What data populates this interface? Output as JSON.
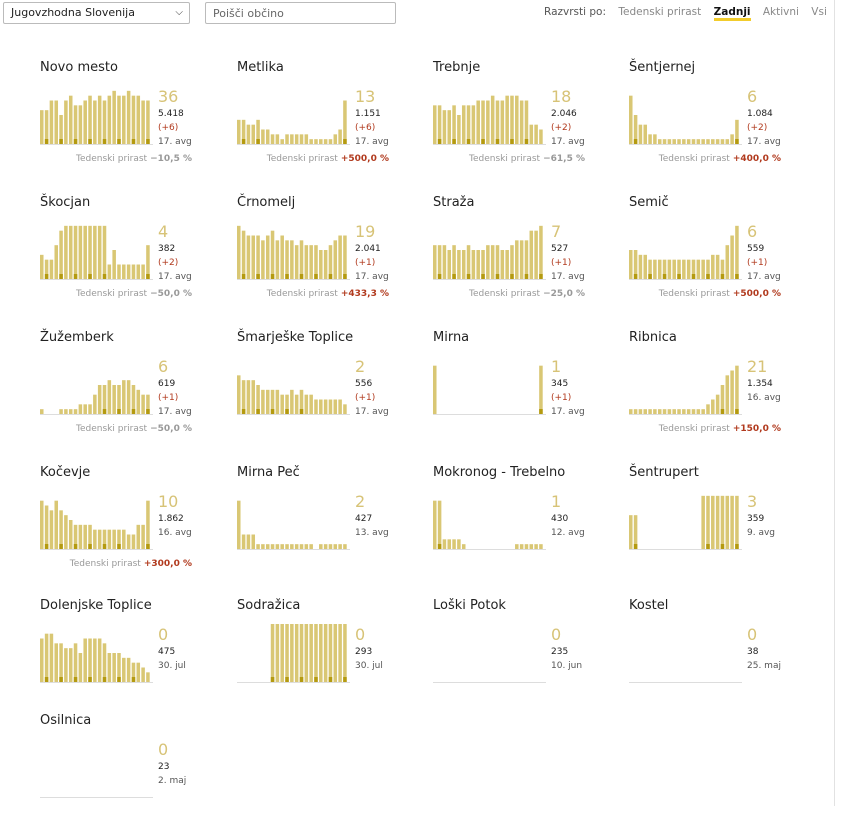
{
  "filters": {
    "region_value": "Jugovzhodna Slovenija",
    "search_placeholder": "Poišči občino"
  },
  "sort": {
    "label": "Razvrsti po:",
    "options": [
      "Tedenski prirast",
      "Zadnji",
      "Aktivni",
      "Vsi"
    ],
    "active": "Zadnji"
  },
  "colors": {
    "bar_light": "#d9c774",
    "bar_dark": "#b49a10",
    "growth_up": "#b13a1e",
    "growth_down": "#1e9a53"
  },
  "growth_label": "Tedenski prirast",
  "cards": [
    {
      "name": "Novo mesto",
      "big": "36",
      "total": "5.418",
      "change": "(+6)",
      "avg": "17. avg",
      "growth": "−10,5 %",
      "dir": "down",
      "bars": [
        7,
        7,
        9,
        9,
        6,
        9,
        10,
        8,
        8,
        9,
        10,
        9,
        10,
        9,
        10,
        11,
        10,
        10,
        11,
        10,
        10,
        9,
        9
      ]
    },
    {
      "name": "Metlika",
      "big": "13",
      "total": "1.151",
      "change": "(+6)",
      "avg": "17. avg",
      "growth": "+500,0 %",
      "dir": "up",
      "bars": [
        5,
        5,
        4,
        4,
        5,
        3,
        3,
        2,
        2,
        1,
        2,
        2,
        2,
        2,
        2,
        1,
        1,
        1,
        1,
        1,
        2,
        3,
        9
      ]
    },
    {
      "name": "Trebnje",
      "big": "18",
      "total": "2.046",
      "change": "(+2)",
      "avg": "17. avg",
      "growth": "−61,5 %",
      "dir": "down",
      "bars": [
        8,
        8,
        7,
        7,
        8,
        6,
        8,
        8,
        8,
        9,
        9,
        9,
        10,
        9,
        9,
        10,
        10,
        10,
        9,
        9,
        4,
        4,
        3
      ]
    },
    {
      "name": "Šentjernej",
      "big": "6",
      "total": "1.084",
      "change": "(+2)",
      "avg": "17. avg",
      "growth": "+400,0 %",
      "dir": "up",
      "bars": [
        10,
        6,
        4,
        4,
        2,
        2,
        1,
        1,
        1,
        1,
        1,
        1,
        1,
        1,
        1,
        1,
        1,
        1,
        1,
        1,
        1,
        2,
        5
      ]
    },
    {
      "name": "Škocjan",
      "big": "4",
      "total": "382",
      "change": "(+2)",
      "avg": "17. avg",
      "growth": "−50,0 %",
      "dir": "down",
      "bars": [
        5,
        4,
        4,
        7,
        10,
        11,
        11,
        11,
        11,
        11,
        11,
        11,
        11,
        11,
        3,
        6,
        3,
        3,
        3,
        3,
        3,
        3,
        7
      ]
    },
    {
      "name": "Črnomelj",
      "big": "19",
      "total": "2.041",
      "change": "(+1)",
      "avg": "17. avg",
      "growth": "+433,3 %",
      "dir": "up",
      "bars": [
        11,
        10,
        9,
        9,
        9,
        8,
        9,
        10,
        8,
        9,
        8,
        8,
        7,
        8,
        7,
        7,
        7,
        6,
        6,
        7,
        8,
        9,
        9
      ]
    },
    {
      "name": "Straža",
      "big": "7",
      "total": "527",
      "change": "(+1)",
      "avg": "17. avg",
      "growth": "−25,0 %",
      "dir": "down",
      "bars": [
        7,
        7,
        7,
        6,
        7,
        6,
        6,
        7,
        6,
        6,
        6,
        7,
        7,
        7,
        6,
        6,
        7,
        8,
        8,
        8,
        10,
        10,
        11
      ]
    },
    {
      "name": "Semič",
      "big": "6",
      "total": "559",
      "change": "(+1)",
      "avg": "17. avg",
      "growth": "+500,0 %",
      "dir": "up",
      "bars": [
        6,
        6,
        5,
        5,
        4,
        4,
        4,
        4,
        4,
        4,
        4,
        4,
        4,
        4,
        4,
        4,
        4,
        5,
        5,
        4,
        7,
        9,
        11
      ]
    },
    {
      "name": "Žužemberk",
      "big": "6",
      "total": "619",
      "change": "(+1)",
      "avg": "17. avg",
      "growth": "−50,0 %",
      "dir": "down",
      "bars": [
        1,
        0,
        0,
        0,
        1,
        1,
        1,
        1,
        2,
        2,
        2,
        4,
        6,
        6,
        7,
        6,
        6,
        7,
        7,
        6,
        5,
        4,
        4
      ]
    },
    {
      "name": "Šmarješke Toplice",
      "big": "2",
      "total": "556",
      "change": "(+1)",
      "avg": "17. avg",
      "growth": "",
      "dir": "",
      "bars": [
        8,
        7,
        7,
        7,
        6,
        5,
        5,
        5,
        5,
        4,
        4,
        5,
        4,
        5,
        4,
        4,
        3,
        3,
        3,
        3,
        3,
        3,
        2
      ]
    },
    {
      "name": "Mirna",
      "big": "1",
      "total": "345",
      "change": "(+1)",
      "avg": "17. avg",
      "growth": "",
      "dir": "",
      "bars": [
        10,
        0,
        0,
        0,
        0,
        0,
        0,
        0,
        0,
        0,
        0,
        0,
        0,
        0,
        0,
        0,
        0,
        0,
        0,
        0,
        0,
        0,
        10
      ]
    },
    {
      "name": "Ribnica",
      "big": "21",
      "total": "1.354",
      "change": "",
      "avg": "16. avg",
      "growth": "+150,0 %",
      "dir": "up",
      "bars": [
        1,
        1,
        1,
        1,
        1,
        1,
        1,
        1,
        1,
        1,
        1,
        1,
        1,
        1,
        1,
        1,
        2,
        3,
        4,
        6,
        8,
        9,
        10
      ]
    },
    {
      "name": "Kočevje",
      "big": "10",
      "total": "1.862",
      "change": "",
      "avg": "16. avg",
      "growth": "+300,0 %",
      "dir": "up",
      "bars": [
        10,
        9,
        8,
        10,
        8,
        7,
        6,
        5,
        5,
        5,
        5,
        4,
        4,
        4,
        4,
        4,
        4,
        4,
        3,
        3,
        5,
        5,
        10
      ]
    },
    {
      "name": "Mirna Peč",
      "big": "2",
      "total": "427",
      "change": "",
      "avg": "13. avg",
      "growth": "",
      "dir": "",
      "bars": [
        10,
        3,
        3,
        3,
        1,
        1,
        1,
        1,
        1,
        1,
        1,
        1,
        1,
        1,
        1,
        1,
        0,
        1,
        1,
        1,
        1,
        1,
        1
      ]
    },
    {
      "name": "Mokronog - Trebelno",
      "big": "1",
      "total": "430",
      "change": "",
      "avg": "12. avg",
      "growth": "",
      "dir": "",
      "bars": [
        10,
        10,
        2,
        2,
        2,
        2,
        1,
        0,
        0,
        0,
        0,
        0,
        0,
        0,
        0,
        0,
        0,
        1,
        1,
        1,
        1,
        1,
        1
      ]
    },
    {
      "name": "Šentrupert",
      "big": "3",
      "total": "359",
      "change": "",
      "avg": "9. avg",
      "growth": "",
      "dir": "",
      "bars": [
        7,
        7,
        0,
        0,
        0,
        0,
        0,
        0,
        0,
        0,
        0,
        0,
        0,
        0,
        0,
        11,
        11,
        11,
        11,
        11,
        11,
        11,
        11
      ]
    },
    {
      "name": "Dolenjske Toplice",
      "big": "0",
      "total": "475",
      "change": "",
      "avg": "30. jul",
      "growth": "",
      "dir": "",
      "bars": [
        9,
        10,
        10,
        8,
        8,
        7,
        7,
        8,
        6,
        9,
        9,
        9,
        9,
        8,
        6,
        6,
        6,
        5,
        5,
        4,
        4,
        3,
        2
      ]
    },
    {
      "name": "Sodražica",
      "big": "0",
      "total": "293",
      "change": "",
      "avg": "30. jul",
      "growth": "",
      "dir": "",
      "bars": [
        0,
        0,
        0,
        0,
        0,
        0,
        0,
        12,
        12,
        12,
        12,
        12,
        12,
        12,
        12,
        12,
        12,
        12,
        12,
        12,
        12,
        12,
        12
      ]
    },
    {
      "name": "Loški Potok",
      "big": "0",
      "total": "235",
      "change": "",
      "avg": "10. jun",
      "growth": "",
      "dir": "",
      "bars": [
        0,
        0,
        0,
        0,
        0,
        0,
        0,
        0,
        0,
        0,
        0,
        0,
        0,
        0,
        0,
        0,
        0,
        0,
        0,
        0,
        0,
        0,
        0
      ]
    },
    {
      "name": "Kostel",
      "big": "0",
      "total": "38",
      "change": "",
      "avg": "25. maj",
      "growth": "",
      "dir": "",
      "bars": [
        0,
        0,
        0,
        0,
        0,
        0,
        0,
        0,
        0,
        0,
        0,
        0,
        0,
        0,
        0,
        0,
        0,
        0,
        0,
        0,
        0,
        0,
        0
      ]
    },
    {
      "name": "Osilnica",
      "big": "0",
      "total": "23",
      "change": "",
      "avg": "2. maj",
      "growth": "",
      "dir": "",
      "bars": [
        0,
        0,
        0,
        0,
        0,
        0,
        0,
        0,
        0,
        0,
        0,
        0,
        0,
        0,
        0,
        0,
        0,
        0,
        0,
        0,
        0,
        0,
        0
      ]
    }
  ]
}
